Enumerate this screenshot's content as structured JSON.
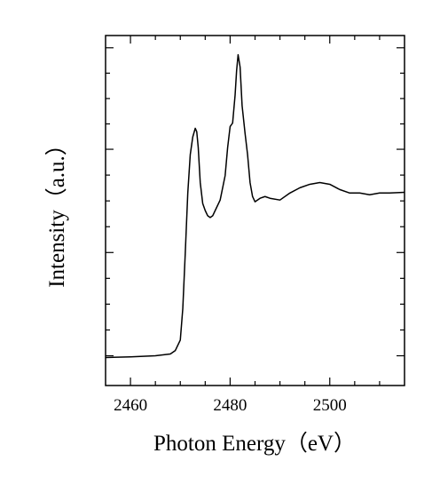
{
  "chart_data": {
    "type": "line",
    "title": "",
    "xlabel": "Photon Energy（eV）",
    "ylabel": "Intensity（a.u.）",
    "xlim": [
      2455,
      2515
    ],
    "ylim": [
      0,
      1
    ],
    "x_ticks": [
      2460,
      2480,
      2500
    ],
    "x_tick_labels": [
      "2460",
      "2480",
      "2500"
    ],
    "y_tick_labels_shown": false,
    "grid": false,
    "legend": "none",
    "line_color": "#000000",
    "series": [
      {
        "x": [
          2455,
          2460,
          2465,
          2468,
          2469,
          2470,
          2470.5,
          2471,
          2471.5,
          2472,
          2472.5,
          2473,
          2473.3,
          2473.6,
          2474,
          2474.5,
          2475,
          2475.5,
          2476,
          2476.5,
          2477,
          2478,
          2479,
          2479.5,
          2480,
          2480.5,
          2481,
          2481.3,
          2481.6,
          2482,
          2482.4,
          2483,
          2483.5,
          2484,
          2484.5,
          2485,
          2486,
          2487,
          2488,
          2490,
          2492,
          2494,
          2496,
          2498,
          2500,
          2502,
          2504,
          2506,
          2508,
          2510,
          2512,
          2515
        ],
        "y": [
          0.08,
          0.082,
          0.085,
          0.09,
          0.1,
          0.13,
          0.22,
          0.38,
          0.55,
          0.66,
          0.71,
          0.735,
          0.725,
          0.68,
          0.58,
          0.52,
          0.5,
          0.485,
          0.48,
          0.485,
          0.5,
          0.53,
          0.6,
          0.68,
          0.74,
          0.75,
          0.83,
          0.9,
          0.945,
          0.91,
          0.8,
          0.72,
          0.66,
          0.58,
          0.54,
          0.525,
          0.535,
          0.54,
          0.535,
          0.53,
          0.55,
          0.565,
          0.575,
          0.58,
          0.575,
          0.56,
          0.55,
          0.55,
          0.545,
          0.55,
          0.55,
          0.552
        ]
      }
    ]
  }
}
